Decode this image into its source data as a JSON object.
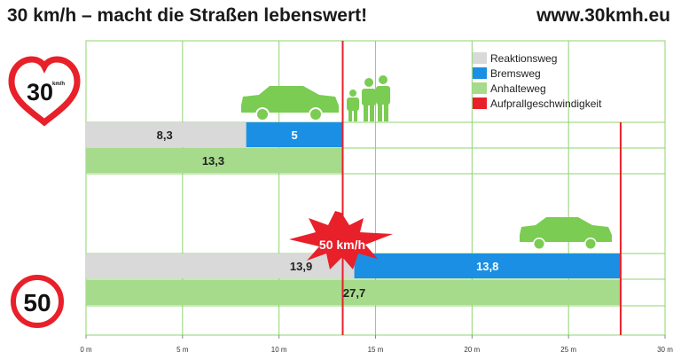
{
  "header": {
    "title": "30 km/h – macht die Straßen lebenswert!",
    "url": "www.30kmh.eu"
  },
  "signs": {
    "sign30": "30",
    "sign30_sub": "km/h",
    "sign50": "50"
  },
  "burst_label": "50 km/h",
  "colors": {
    "reaktionsweg": "#d9d9d9",
    "bremsweg": "#1a8fe3",
    "anhalteweg": "#a6db8c",
    "aufprall": "#e8202a",
    "grid": "#8fd36f",
    "car": "#7acc52"
  },
  "chart_data": {
    "type": "bar",
    "orientation": "horizontal",
    "stacked": true,
    "xlim": [
      0,
      30
    ],
    "xticks": [
      "0 m",
      "5 m",
      "10 m",
      "15 m",
      "20 m",
      "25 m",
      "30 m"
    ],
    "grid": true,
    "legend_position": "top-right",
    "legend": [
      "Reaktionsweg",
      "Bremsweg",
      "Anhalteweg",
      "Aufprallgeschwindigkeit"
    ],
    "groups": [
      {
        "name": "30 km/h",
        "reaktionsweg": 8.3,
        "bremsweg": 5,
        "anhalteweg": 13.3,
        "aufprall_x": 13.3
      },
      {
        "name": "50 km/h",
        "reaktionsweg": 13.9,
        "bremsweg": 13.8,
        "anhalteweg": 27.7,
        "aufprall_x": 27.7
      }
    ],
    "labels": {
      "g30_reaktion": "8,3",
      "g30_brems": "5",
      "g30_anhalte": "13,3",
      "g50_reaktion": "13,9",
      "g50_brems": "13,8",
      "g50_anhalte": "27,7"
    }
  }
}
